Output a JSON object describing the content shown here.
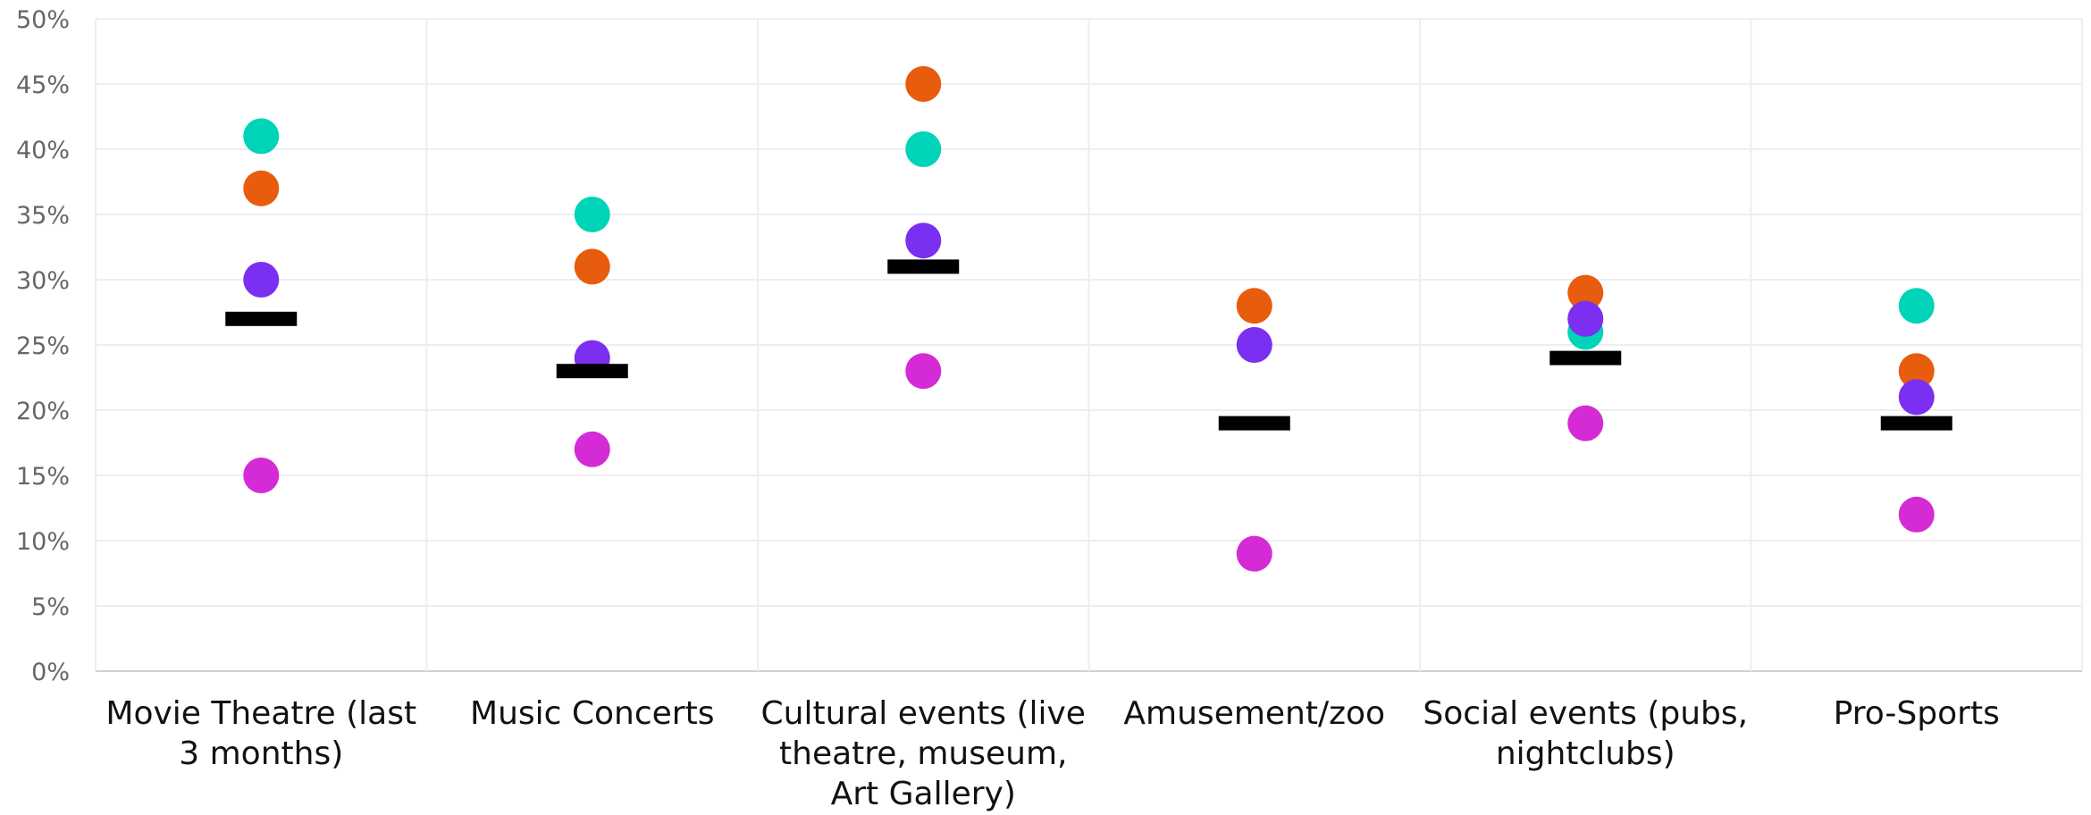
{
  "chart_data": {
    "type": "scatter",
    "title": "",
    "xlabel": "",
    "ylabel": "",
    "ylim": [
      0,
      50
    ],
    "ytick_labels": [
      "0%",
      "5%",
      "10%",
      "15%",
      "20%",
      "25%",
      "30%",
      "35%",
      "40%",
      "45%",
      "50%"
    ],
    "ytick_values": [
      0,
      5,
      10,
      15,
      20,
      25,
      30,
      35,
      40,
      45,
      50
    ],
    "grid": true,
    "legend": "none",
    "categories": [
      [
        "Movie Theatre (last",
        "3 months)"
      ],
      [
        "Music Concerts"
      ],
      [
        "Cultural events (live",
        "theatre, museum,",
        "Art Gallery)"
      ],
      [
        "Amusement/zoo"
      ],
      [
        "Social events (pubs,",
        "nightclubs)"
      ],
      [
        "Pro-Sports"
      ]
    ],
    "series": [
      {
        "color": "#00d4b8",
        "marker": "circle",
        "values": [
          41,
          35,
          40,
          null,
          26,
          28
        ]
      },
      {
        "color": "#e85c0d",
        "marker": "circle",
        "values": [
          37,
          31,
          45,
          28,
          29,
          23
        ]
      },
      {
        "color": "#7b2ff0",
        "marker": "circle",
        "values": [
          30,
          24,
          33,
          25,
          27,
          21
        ]
      },
      {
        "color": "#d42bd6",
        "marker": "circle",
        "values": [
          15,
          17,
          23,
          9,
          19,
          12
        ]
      },
      {
        "color": "#000000",
        "marker": "dash",
        "values": [
          27,
          23,
          31,
          19,
          24,
          19
        ]
      }
    ]
  }
}
